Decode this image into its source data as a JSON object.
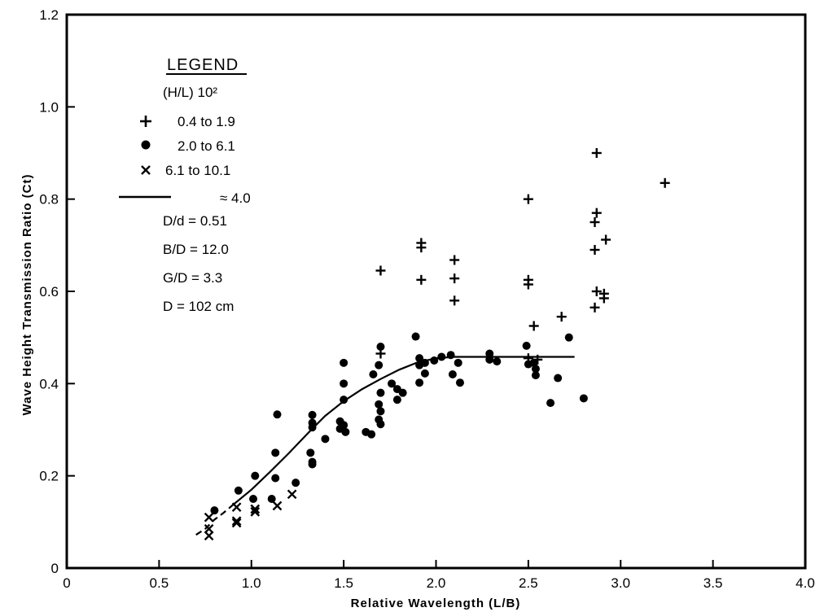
{
  "chart_data": {
    "type": "scatter",
    "xlabel": "Relative Wavelength (L/B)",
    "ylabel": "Wave Height Transmission Ratio (Ct)",
    "xlim": [
      0,
      4.0
    ],
    "ylim": [
      0,
      1.2
    ],
    "x_ticks": [
      "0",
      "0.5",
      "1.0",
      "1.5",
      "2.0",
      "2.5",
      "3.0",
      "3.5",
      "4.0"
    ],
    "y_ticks": [
      "0",
      "0.2",
      "0.4",
      "0.6",
      "0.8",
      "1.0",
      "1.2"
    ],
    "grid": false,
    "legend_position": "top-left",
    "legend": {
      "title": "LEGEND",
      "subtitle": "(H/L) 10²",
      "entries": [
        {
          "marker": "plus",
          "text": "0.4 to 1.9"
        },
        {
          "marker": "dot",
          "text": "2.0 to 6.1"
        },
        {
          "marker": "x",
          "text": "6.1 to 10.1"
        },
        {
          "marker": "line",
          "text": "≈ 4.0"
        }
      ],
      "params": [
        "D/d = 0.51",
        "B/D = 12.0",
        "G/D = 3.3",
        "D = 102 cm"
      ]
    },
    "series": [
      {
        "marker": "plus",
        "label": "0.4 to 1.9",
        "points": [
          [
            1.7,
            0.645
          ],
          [
            1.7,
            0.465
          ],
          [
            1.92,
            0.705
          ],
          [
            1.92,
            0.695
          ],
          [
            1.92,
            0.625
          ],
          [
            2.1,
            0.668
          ],
          [
            2.1,
            0.628
          ],
          [
            2.1,
            0.58
          ],
          [
            2.5,
            0.8
          ],
          [
            2.5,
            0.625
          ],
          [
            2.5,
            0.615
          ],
          [
            2.53,
            0.525
          ],
          [
            2.68,
            0.545
          ],
          [
            2.87,
            0.9
          ],
          [
            2.87,
            0.77
          ],
          [
            2.86,
            0.75
          ],
          [
            2.86,
            0.69
          ],
          [
            2.92,
            0.712
          ],
          [
            2.87,
            0.6
          ],
          [
            2.91,
            0.595
          ],
          [
            2.86,
            0.565
          ],
          [
            2.91,
            0.585
          ],
          [
            3.24,
            0.835
          ],
          [
            2.5,
            0.455
          ],
          [
            2.55,
            0.452
          ]
        ]
      },
      {
        "marker": "dot",
        "label": "2.0 to 6.1",
        "points": [
          [
            0.8,
            0.125
          ],
          [
            0.93,
            0.168
          ],
          [
            1.02,
            0.2
          ],
          [
            1.01,
            0.15
          ],
          [
            1.11,
            0.15
          ],
          [
            1.13,
            0.195
          ],
          [
            1.13,
            0.25
          ],
          [
            1.14,
            0.333
          ],
          [
            1.24,
            0.185
          ],
          [
            1.32,
            0.25
          ],
          [
            1.33,
            0.315
          ],
          [
            1.33,
            0.332
          ],
          [
            1.33,
            0.305
          ],
          [
            1.33,
            0.23
          ],
          [
            1.33,
            0.225
          ],
          [
            1.4,
            0.28
          ],
          [
            1.48,
            0.318
          ],
          [
            1.48,
            0.302
          ],
          [
            1.5,
            0.445
          ],
          [
            1.5,
            0.4
          ],
          [
            1.5,
            0.365
          ],
          [
            1.5,
            0.31
          ],
          [
            1.51,
            0.295
          ],
          [
            1.62,
            0.295
          ],
          [
            1.65,
            0.29
          ],
          [
            1.66,
            0.42
          ],
          [
            1.7,
            0.48
          ],
          [
            1.69,
            0.44
          ],
          [
            1.7,
            0.38
          ],
          [
            1.69,
            0.355
          ],
          [
            1.7,
            0.34
          ],
          [
            1.69,
            0.322
          ],
          [
            1.7,
            0.312
          ],
          [
            1.76,
            0.4
          ],
          [
            1.79,
            0.388
          ],
          [
            1.79,
            0.365
          ],
          [
            1.82,
            0.38
          ],
          [
            1.89,
            0.502
          ],
          [
            1.91,
            0.455
          ],
          [
            1.91,
            0.44
          ],
          [
            1.91,
            0.402
          ],
          [
            1.94,
            0.422
          ],
          [
            1.94,
            0.445
          ],
          [
            1.99,
            0.45
          ],
          [
            2.03,
            0.458
          ],
          [
            2.08,
            0.462
          ],
          [
            2.09,
            0.42
          ],
          [
            2.12,
            0.445
          ],
          [
            2.13,
            0.402
          ],
          [
            2.29,
            0.465
          ],
          [
            2.29,
            0.452
          ],
          [
            2.33,
            0.448
          ],
          [
            2.49,
            0.482
          ],
          [
            2.5,
            0.442
          ],
          [
            2.53,
            0.445
          ],
          [
            2.54,
            0.432
          ],
          [
            2.54,
            0.418
          ],
          [
            2.62,
            0.358
          ],
          [
            2.66,
            0.412
          ],
          [
            2.72,
            0.5
          ],
          [
            2.8,
            0.368
          ]
        ]
      },
      {
        "marker": "x",
        "label": "6.1 to 10.1",
        "points": [
          [
            0.77,
            0.11
          ],
          [
            0.77,
            0.085
          ],
          [
            0.77,
            0.07
          ],
          [
            0.92,
            0.132
          ],
          [
            0.92,
            0.102
          ],
          [
            0.92,
            0.098
          ],
          [
            1.02,
            0.128
          ],
          [
            1.02,
            0.122
          ],
          [
            1.14,
            0.135
          ],
          [
            1.22,
            0.16
          ]
        ]
      }
    ],
    "fit_curve": {
      "label": "≈ 4.0",
      "dashed_points": [
        [
          0.7,
          0.072
        ],
        [
          0.75,
          0.085
        ],
        [
          0.8,
          0.105
        ],
        [
          0.85,
          0.12
        ],
        [
          0.9,
          0.137
        ]
      ],
      "solid_points": [
        [
          0.9,
          0.137
        ],
        [
          1.0,
          0.17
        ],
        [
          1.1,
          0.208
        ],
        [
          1.2,
          0.248
        ],
        [
          1.3,
          0.29
        ],
        [
          1.4,
          0.33
        ],
        [
          1.5,
          0.362
        ],
        [
          1.6,
          0.388
        ],
        [
          1.7,
          0.41
        ],
        [
          1.8,
          0.43
        ],
        [
          1.9,
          0.446
        ],
        [
          2.0,
          0.455
        ],
        [
          2.1,
          0.458
        ],
        [
          2.2,
          0.458
        ],
        [
          2.5,
          0.458
        ],
        [
          2.75,
          0.458
        ]
      ]
    }
  }
}
